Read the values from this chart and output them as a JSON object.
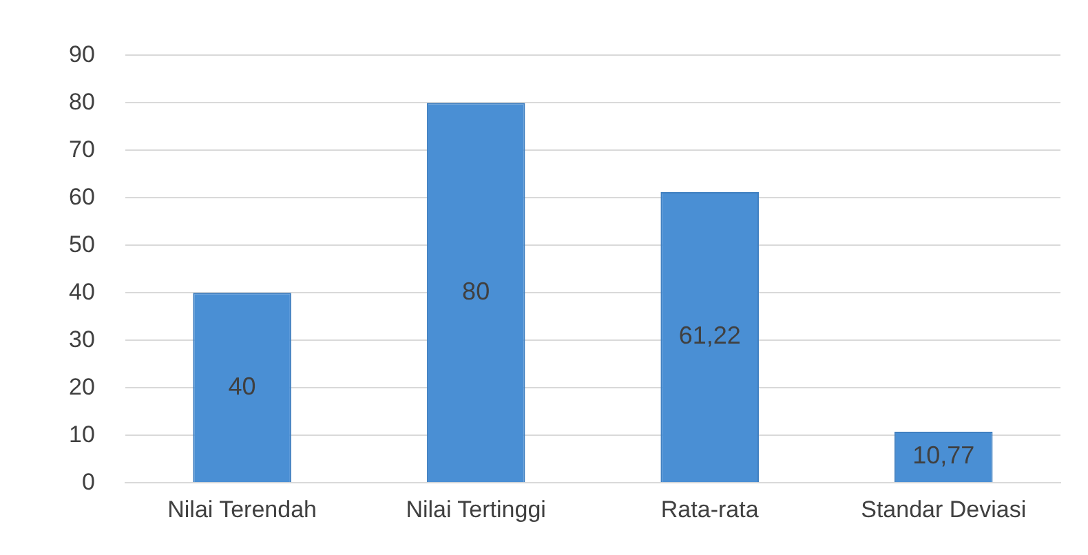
{
  "chart_data": {
    "type": "bar",
    "categories": [
      "Nilai Terendah",
      "Nilai Tertinggi",
      "Rata-rata",
      "Standar Deviasi"
    ],
    "values": [
      40,
      80,
      61.22,
      10.77
    ],
    "value_labels": [
      "40",
      "80",
      "61,22",
      "10,77"
    ],
    "color": "#4a8fd4",
    "ylim": [
      0,
      90
    ],
    "yticks": [
      0,
      10,
      20,
      30,
      40,
      50,
      60,
      70,
      80,
      90
    ],
    "grid": "y",
    "legend": false
  }
}
